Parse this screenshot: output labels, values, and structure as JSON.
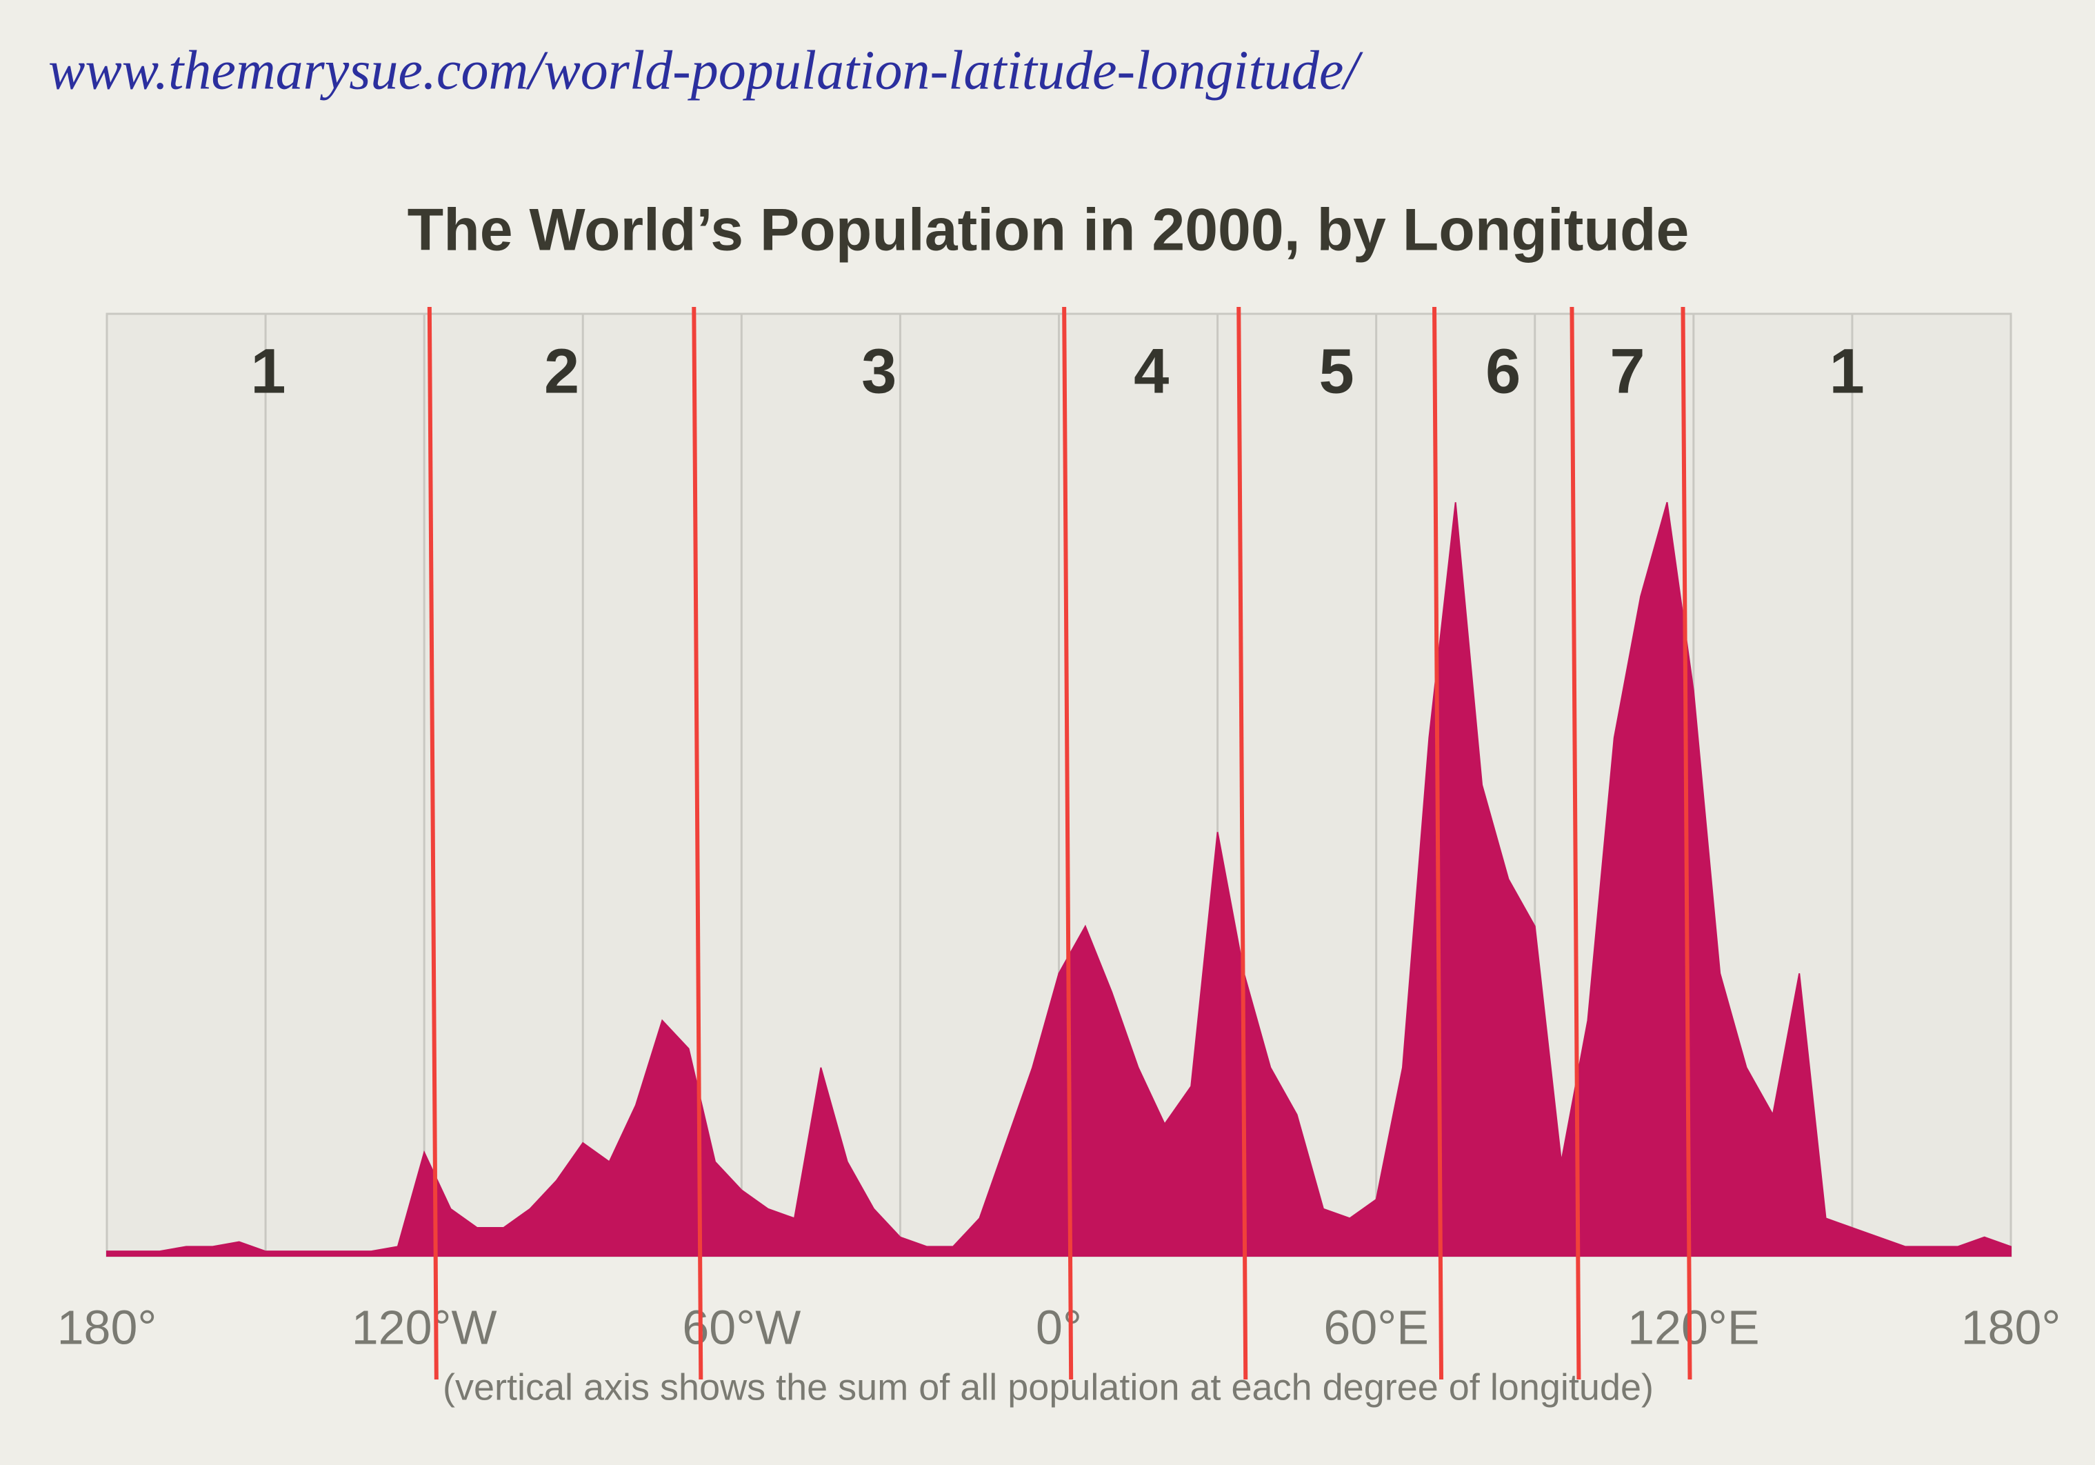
{
  "chart_data": {
    "type": "area",
    "annotation": "www.themarysue.com/world-population-latitude-longitude/",
    "title": "The World’s Population in 2000, by Longitude",
    "caption": "(vertical axis shows the sum of all population at each degree of longitude)",
    "x": [
      -180,
      -175,
      -170,
      -165,
      -160,
      -155,
      -150,
      -145,
      -140,
      -135,
      -130,
      -125,
      -120,
      -115,
      -110,
      -105,
      -100,
      -95,
      -90,
      -85,
      -80,
      -75,
      -70,
      -65,
      -60,
      -55,
      -50,
      -45,
      -40,
      -35,
      -30,
      -25,
      -20,
      -15,
      -10,
      -5,
      0,
      5,
      10,
      15,
      20,
      25,
      30,
      35,
      40,
      45,
      50,
      55,
      60,
      65,
      70,
      75,
      80,
      85,
      90,
      95,
      100,
      105,
      110,
      115,
      120,
      125,
      130,
      135,
      140,
      145,
      150,
      155,
      160,
      165,
      170,
      175,
      180
    ],
    "values": [
      0.5,
      0.5,
      0.5,
      1,
      1,
      1.5,
      0.5,
      0.5,
      0.5,
      0.5,
      0.5,
      1,
      11,
      5,
      3,
      3,
      5,
      8,
      12,
      10,
      16,
      25,
      22,
      10,
      7,
      5,
      4,
      20,
      10,
      5,
      2,
      1,
      1,
      4,
      12,
      20,
      30,
      35,
      28,
      20,
      14,
      18,
      45,
      30,
      20,
      15,
      5,
      4,
      6,
      20,
      55,
      80,
      50,
      40,
      35,
      10,
      25,
      55,
      70,
      80,
      60,
      30,
      20,
      15,
      30,
      4,
      3,
      2,
      1,
      1,
      1,
      2,
      1
    ],
    "color": "#c2135b",
    "xlim": [
      -180,
      180
    ],
    "ylim": [
      0,
      100
    ],
    "xticks": [
      {
        "value": -180,
        "label": "180°"
      },
      {
        "value": -120,
        "label": "120°W"
      },
      {
        "value": -60,
        "label": "60°W"
      },
      {
        "value": 0,
        "label": "0°"
      },
      {
        "value": 60,
        "label": "60°E"
      },
      {
        "value": 120,
        "label": "120°E"
      },
      {
        "value": 180,
        "label": "180°"
      }
    ],
    "xgrid": [
      -150,
      -90,
      -30,
      30,
      90,
      150
    ],
    "dividers": [
      -119,
      -69,
      1,
      34,
      71,
      97,
      118
    ],
    "divider_color": "#f0413a",
    "zones": [
      "1",
      "2",
      "3",
      "4",
      "5",
      "6",
      "7",
      "1"
    ]
  }
}
